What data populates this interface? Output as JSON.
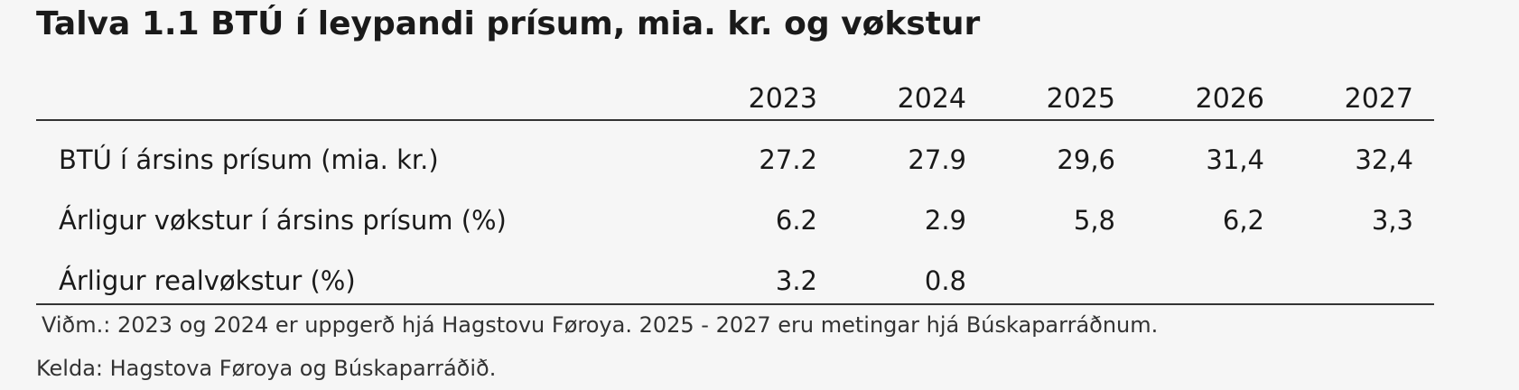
{
  "title": "Talva 1.1 BTÚ í leypandi prísum, mia. kr. og vøkstur",
  "table": {
    "columns": [
      "2023",
      "2024",
      "2025",
      "2026",
      "2027"
    ],
    "rows": [
      {
        "label": "BTÚ í ársins prísum (mia. kr.)",
        "cells": [
          "27.2",
          "27.9",
          "29,6",
          "31,4",
          "32,4"
        ]
      },
      {
        "label": "Árligur vøkstur í ársins prísum (%)",
        "cells": [
          "6.2",
          "2.9",
          "5,8",
          "6,2",
          "3,3"
        ]
      },
      {
        "label": "Árligur realvøkstur (%)",
        "cells": [
          "3.2",
          "0.8"
        ]
      }
    ]
  },
  "note": "Viðm.: 2023 og 2024 er uppgerð hjá Hagstovu Føroya. 2025 - 2027 eru metingar hjá Búskaparráðnum.",
  "source": "Kelda: Hagstova Føroya og Búskaparráðið."
}
